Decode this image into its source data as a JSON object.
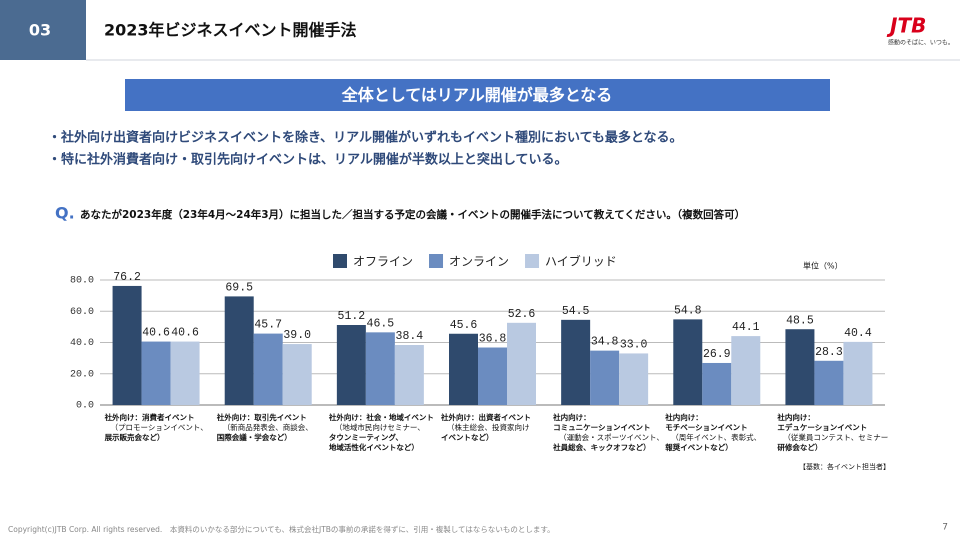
{
  "header": {
    "number": "03",
    "title": "2023年ビジネスイベント開催手法",
    "logo": "JTB",
    "tagline": "感動のそばに、いつも。"
  },
  "banner": "全体としてはリアル開催が最多となる",
  "bullets": [
    "・社外向け出資者向けビジネスイベントを除き、リアル開催がいずれもイベント種別においても最多となる。",
    "・特に社外消費者向け・取引先向けイベントは、リアル開催が半数以上と突出している。"
  ],
  "question": {
    "mark": "Q.",
    "text": "あなたが2023年度（23年4月～24年3月）に担当した／担当する予定の会議・イベントの開催手法について教えてください。（複数回答可）"
  },
  "chart_data": {
    "type": "bar",
    "unit": "単位（%）",
    "categories": [
      [
        "社外向け：消費者イベント",
        "（プロモーションイベント、",
        "展示販売会など）"
      ],
      [
        "社外向け：取引先イベント",
        "（新商品発表会、商談会、",
        "国際会議・学会など）"
      ],
      [
        "社外向け：社会・地域イベント",
        "（地域市民向けセミナー、",
        "タウンミーティング、",
        "地域活性化イベントなど）"
      ],
      [
        "社外向け：出資者イベント",
        "（株主総会、投資家向け",
        "イベントなど）"
      ],
      [
        "社内向け：",
        "コミュニケーションイベント",
        "（運動会・スポーツイベント、",
        "社員総会、キックオフなど）"
      ],
      [
        "社内向け：",
        "モチベーションイベント",
        "（周年イベント、表彰式、",
        "報奨イベントなど）"
      ],
      [
        "社内向け：",
        "エデュケーションイベント",
        "（従業員コンテスト、セミナー",
        "研修会など）"
      ]
    ],
    "series": [
      {
        "name": "オフライン",
        "color": "#2f4a6d",
        "values": [
          76.2,
          69.5,
          51.2,
          45.6,
          54.5,
          54.8,
          48.5
        ],
        "value_labels": [
          "76.2",
          "69.5",
          "51.2",
          "45.6",
          "54.5",
          "54.8",
          "48.5"
        ]
      },
      {
        "name": "オンライン",
        "color": "#6b8cc0",
        "values": [
          40.6,
          45.7,
          46.5,
          36.8,
          34.8,
          26.9,
          28.3
        ],
        "value_labels": [
          "40.6",
          "45.7",
          "46.5",
          "36.8",
          "34.8",
          "26.9",
          "28.3"
        ]
      },
      {
        "name": "ハイブリッド",
        "color": "#b9c9e1",
        "values": [
          40.6,
          39.0,
          38.4,
          52.6,
          33.0,
          44.1,
          40.4
        ],
        "value_labels": [
          "40.6",
          "39.0",
          "38.4",
          "52.6",
          "33.0",
          "44.1",
          "40.4"
        ]
      }
    ],
    "ylim": [
      0,
      80
    ],
    "yticks": [
      {
        "value": 0,
        "label": "0.0"
      },
      {
        "value": 20,
        "label": "20.0"
      },
      {
        "value": 40,
        "label": "40.0"
      },
      {
        "value": 60,
        "label": "60.0"
      },
      {
        "value": 80,
        "label": "80.0"
      }
    ],
    "grid": true,
    "legend": "top"
  },
  "footnote": "【基数：各イベント担当者】",
  "copyright": "Copyright(c)JTB Corp. All rights reserved.　本資料のいかなる部分についても、株式会社JTBの事前の承諾を得ずに、引用・複製してはならないものとします。",
  "page": "7"
}
